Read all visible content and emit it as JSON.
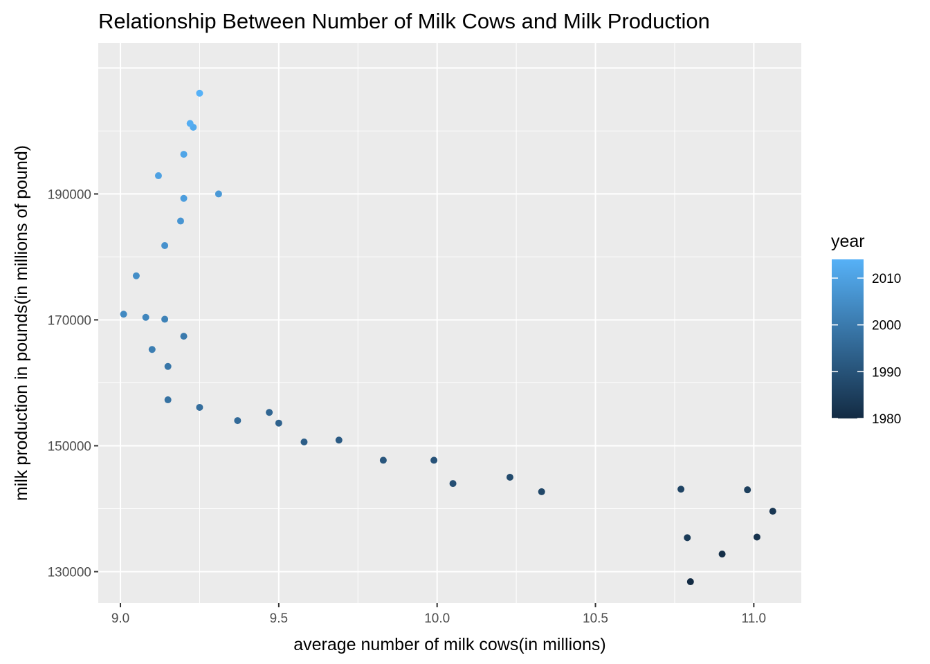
{
  "chart_data": {
    "type": "scatter",
    "title": "Relationship Between Number of Milk Cows and Milk Production",
    "xlabel": "average number of milk cows(in millions)",
    "ylabel": "milk production in pounds(in millions of pound)",
    "xlim": [
      8.93,
      11.15
    ],
    "ylim": [
      125000,
      214000
    ],
    "x_ticks": [
      9.0,
      9.5,
      10.0,
      10.5,
      11.0
    ],
    "x_tick_labels": [
      "9.0",
      "9.5",
      "10.0",
      "10.5",
      "11.0"
    ],
    "y_ticks": [
      130000,
      150000,
      170000,
      190000
    ],
    "y_tick_labels": [
      "130000",
      "150000",
      "170000",
      "190000"
    ],
    "grid": true,
    "legend": {
      "title": "year",
      "placement": "right",
      "type": "colorbar",
      "range": [
        1980,
        2014
      ],
      "ticks": [
        1980,
        1990,
        2000,
        2010
      ],
      "tick_labels": [
        "1980",
        "1990",
        "2000",
        "2010"
      ],
      "color_low": "#132b43",
      "color_high": "#56b1f7"
    },
    "points": [
      {
        "x": 10.8,
        "y": 128400,
        "year": 1980
      },
      {
        "x": 10.9,
        "y": 132800,
        "year": 1981
      },
      {
        "x": 11.01,
        "y": 135500,
        "year": 1982
      },
      {
        "x": 11.06,
        "y": 139600,
        "year": 1983
      },
      {
        "x": 10.79,
        "y": 135400,
        "year": 1984
      },
      {
        "x": 10.98,
        "y": 143000,
        "year": 1985
      },
      {
        "x": 10.77,
        "y": 143100,
        "year": 1986
      },
      {
        "x": 10.33,
        "y": 142700,
        "year": 1987
      },
      {
        "x": 10.23,
        "y": 145000,
        "year": 1988
      },
      {
        "x": 10.05,
        "y": 144000,
        "year": 1989
      },
      {
        "x": 9.99,
        "y": 147700,
        "year": 1990
      },
      {
        "x": 9.83,
        "y": 147700,
        "year": 1991
      },
      {
        "x": 9.69,
        "y": 150900,
        "year": 1992
      },
      {
        "x": 9.58,
        "y": 150600,
        "year": 1993
      },
      {
        "x": 9.5,
        "y": 153600,
        "year": 1994
      },
      {
        "x": 9.47,
        "y": 155300,
        "year": 1995
      },
      {
        "x": 9.37,
        "y": 154000,
        "year": 1996
      },
      {
        "x": 9.25,
        "y": 156100,
        "year": 1997
      },
      {
        "x": 9.15,
        "y": 157300,
        "year": 1998
      },
      {
        "x": 9.15,
        "y": 162600,
        "year": 1999
      },
      {
        "x": 9.2,
        "y": 167400,
        "year": 2000
      },
      {
        "x": 9.1,
        "y": 165300,
        "year": 2001
      },
      {
        "x": 9.14,
        "y": 170100,
        "year": 2002
      },
      {
        "x": 9.08,
        "y": 170400,
        "year": 2003
      },
      {
        "x": 9.01,
        "y": 170900,
        "year": 2004
      },
      {
        "x": 9.05,
        "y": 177000,
        "year": 2005
      },
      {
        "x": 9.14,
        "y": 181800,
        "year": 2006
      },
      {
        "x": 9.19,
        "y": 185700,
        "year": 2007
      },
      {
        "x": 9.31,
        "y": 190000,
        "year": 2008
      },
      {
        "x": 9.2,
        "y": 189300,
        "year": 2009
      },
      {
        "x": 9.12,
        "y": 192900,
        "year": 2010
      },
      {
        "x": 9.2,
        "y": 196300,
        "year": 2011
      },
      {
        "x": 9.23,
        "y": 200600,
        "year": 2012
      },
      {
        "x": 9.22,
        "y": 201200,
        "year": 2013
      },
      {
        "x": 9.25,
        "y": 206000,
        "year": 2014
      }
    ]
  }
}
